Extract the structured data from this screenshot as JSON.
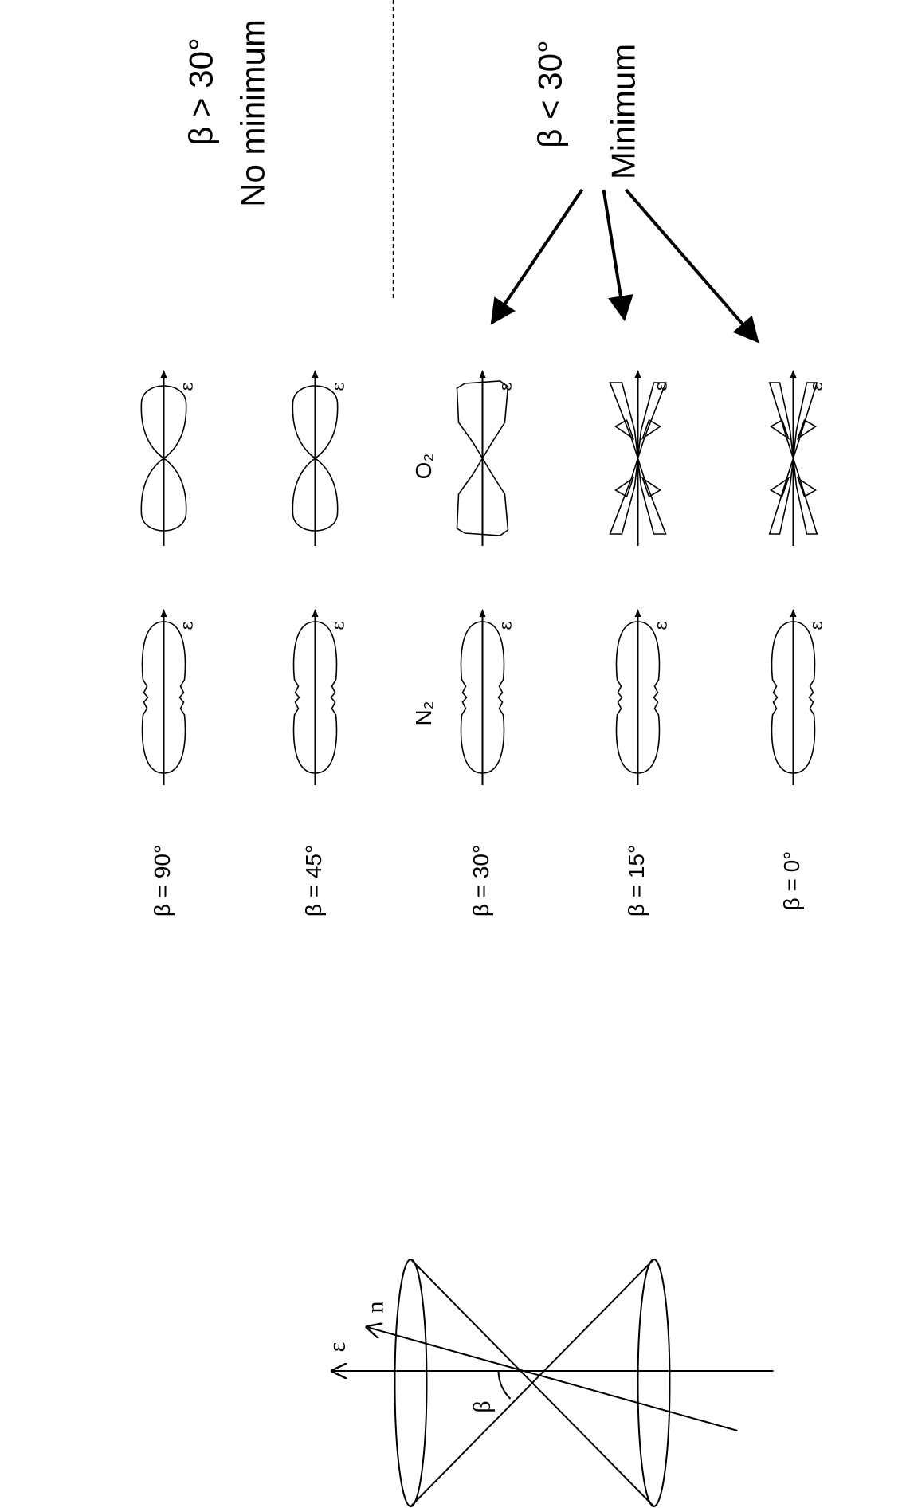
{
  "annotations": {
    "beta_gt": "β > 30°",
    "no_minimum": "No minimum",
    "beta_lt": "β < 30°",
    "minimum": "Minimum"
  },
  "columns": [
    "N₂",
    "O₂"
  ],
  "rows": [
    "β = 90°",
    "β = 45°",
    "β = 30°",
    "β = 15°",
    "β = 0°"
  ],
  "field_label": "ε",
  "cone": {
    "field": "ε",
    "normal": "n",
    "angle": "β"
  }
}
